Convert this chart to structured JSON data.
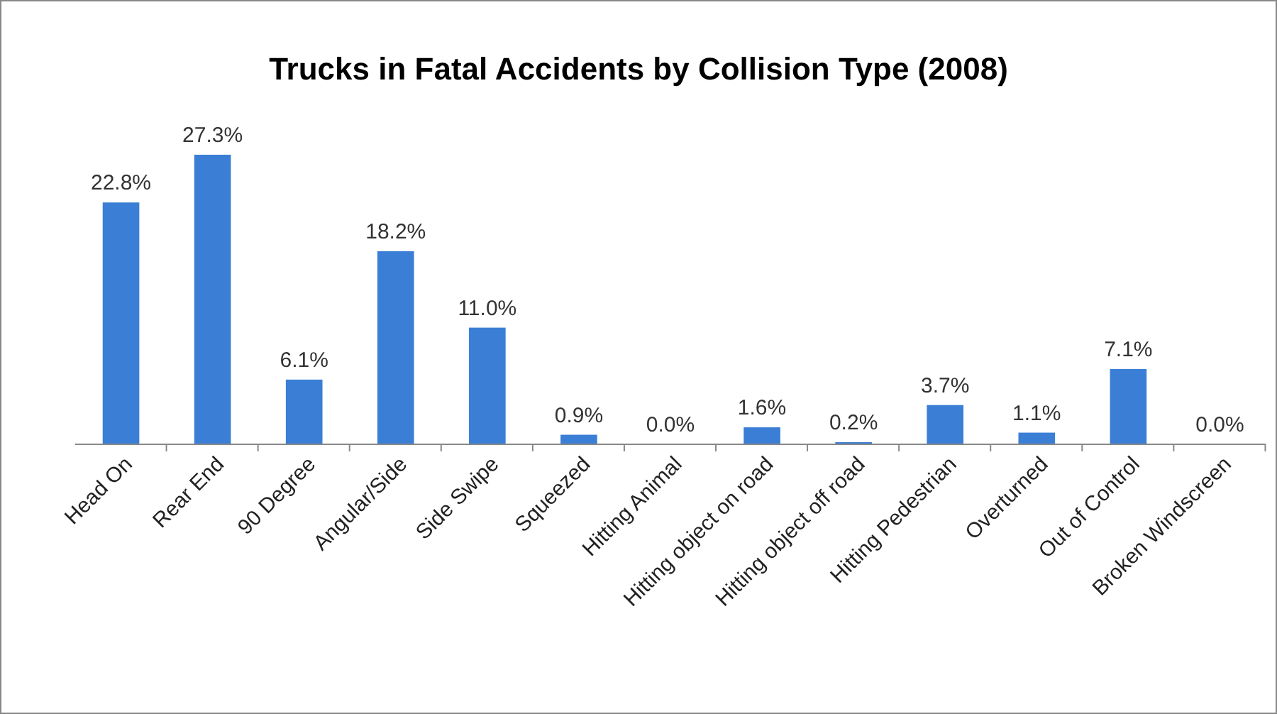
{
  "chart_data": {
    "type": "bar",
    "title": "Trucks in Fatal Accidents by Collision Type (2008)",
    "categories": [
      "Head On",
      "Rear End",
      "90 Degree",
      "Angular/Side",
      "Side Swipe",
      "Squeezed",
      "Hitting Animal",
      "Hitting object on road",
      "Hitting object off road",
      "Hitting Pedestrian",
      "Overturned",
      "Out of Control",
      "Broken Windscreen"
    ],
    "values": [
      22.8,
      27.3,
      6.1,
      18.2,
      11.0,
      0.9,
      0.0,
      1.6,
      0.2,
      3.7,
      1.1,
      7.1,
      0.0
    ],
    "value_labels": [
      "22.8%",
      "27.3%",
      "6.1%",
      "18.2%",
      "11.0%",
      "0.9%",
      "0.0%",
      "1.6%",
      "0.2%",
      "3.7%",
      "1.1%",
      "7.1%",
      "0.0%"
    ],
    "color": "#3a7fd5"
  }
}
